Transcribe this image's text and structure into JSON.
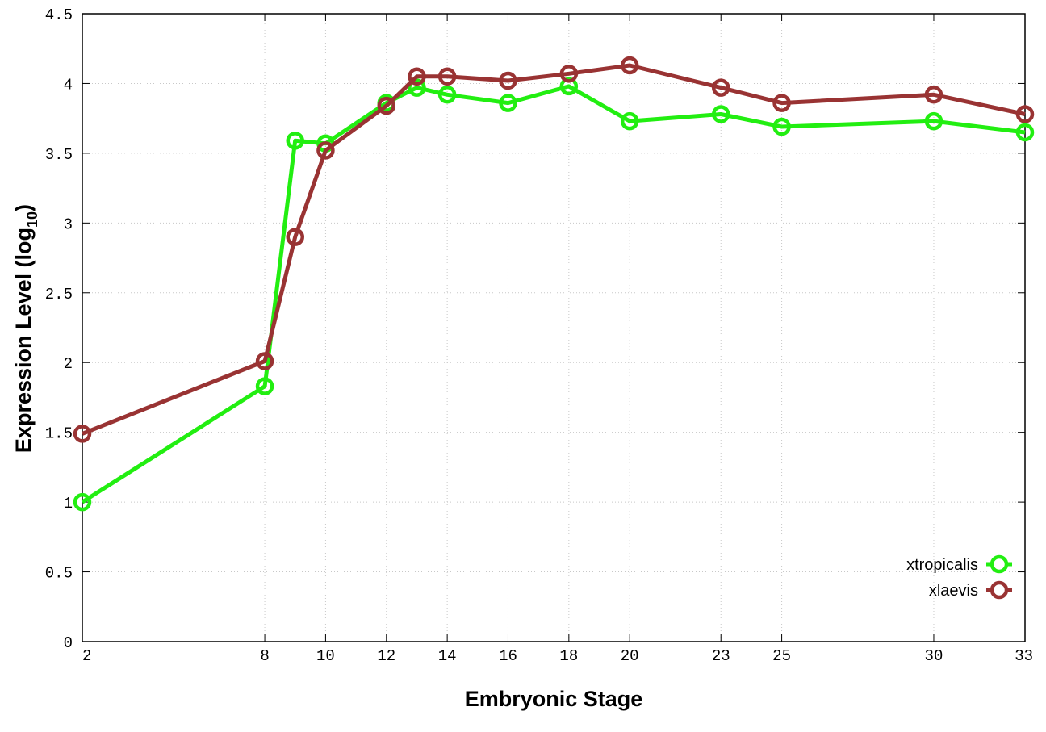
{
  "chart_data": {
    "type": "line",
    "xlabel": "Embryonic Stage",
    "ylabel": "Expression Level (log",
    "ylabel_sub": "10",
    "ylabel_end": ")",
    "xlim": [
      2,
      33
    ],
    "ylim": [
      0,
      4.5
    ],
    "x_ticks": [
      2,
      8,
      10,
      12,
      14,
      16,
      18,
      20,
      23,
      25,
      30,
      33
    ],
    "y_ticks": [
      0,
      0.5,
      1,
      1.5,
      2,
      2.5,
      3,
      3.5,
      4,
      4.5
    ],
    "y_tick_labels": [
      "0",
      "0.5",
      "1",
      "1.5",
      "2",
      "2.5",
      "3",
      "3.5",
      "4",
      "4.5"
    ],
    "grid": true,
    "legend_position": "bottom-right",
    "x": [
      2,
      8,
      9,
      10,
      12,
      13,
      14,
      16,
      18,
      20,
      23,
      25,
      30,
      33
    ],
    "series": [
      {
        "name": "xtropicalis",
        "color": "#22ee11",
        "values": [
          1.0,
          1.83,
          3.59,
          3.57,
          3.86,
          3.97,
          3.92,
          3.86,
          3.98,
          3.73,
          3.78,
          3.69,
          3.73,
          3.65
        ]
      },
      {
        "name": "xlaevis",
        "color": "#993333",
        "values": [
          1.49,
          2.01,
          2.9,
          3.52,
          3.84,
          4.05,
          4.05,
          4.02,
          4.07,
          4.13,
          3.97,
          3.86,
          3.92,
          3.78
        ]
      }
    ]
  }
}
